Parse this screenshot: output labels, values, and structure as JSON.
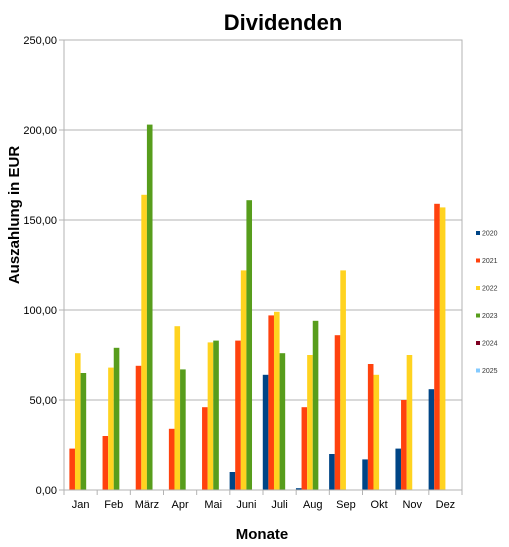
{
  "chart_data": {
    "type": "bar",
    "title": "Dividenden",
    "xlabel": "Monate",
    "ylabel": "Auszahlung in EUR",
    "ylim": [
      0,
      250
    ],
    "yticks": [
      0,
      50,
      100,
      150,
      200,
      250
    ],
    "ytick_labels": [
      "0,00",
      "50,00",
      "100,00",
      "150,00",
      "200,00",
      "250,00"
    ],
    "grid": true,
    "legend_position": "right",
    "categories": [
      "Jan",
      "Feb",
      "März",
      "Apr",
      "Mai",
      "Juni",
      "Juli",
      "Aug",
      "Sep",
      "Okt",
      "Nov",
      "Dez"
    ],
    "series": [
      {
        "name": "2020",
        "color": "#004586",
        "values": [
          0,
          0,
          0,
          0,
          0,
          10,
          64,
          1,
          20,
          17,
          23,
          56
        ]
      },
      {
        "name": "2021",
        "color": "#ff420e",
        "values": [
          23,
          30,
          69,
          34,
          46,
          83,
          97,
          46,
          86,
          70,
          50,
          159
        ]
      },
      {
        "name": "2022",
        "color": "#ffd320",
        "values": [
          76,
          68,
          164,
          91,
          82,
          122,
          99,
          75,
          122,
          64,
          75,
          157
        ]
      },
      {
        "name": "2023",
        "color": "#579d1c",
        "values": [
          65,
          79,
          203,
          67,
          83,
          161,
          76,
          94,
          0,
          0,
          0,
          0
        ]
      },
      {
        "name": "2024",
        "color": "#7e0021",
        "values": [
          0,
          0,
          0,
          0,
          0,
          0,
          0,
          0,
          0,
          0,
          0,
          0
        ]
      },
      {
        "name": "2025",
        "color": "#83caff",
        "values": [
          0,
          0,
          0,
          0,
          0,
          0,
          0,
          0,
          0,
          0,
          0,
          0
        ]
      }
    ]
  }
}
